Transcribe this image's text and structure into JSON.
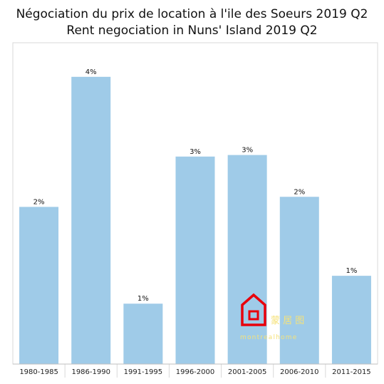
{
  "chart_data": {
    "type": "bar",
    "title": "Négociation du prix de location à l'ile des Soeurs 2019 Q2",
    "subtitle": "Rent negociation in Nuns' Island 2019 Q2",
    "categories": [
      "1980-1985",
      "1986-1990",
      "1991-1995",
      "1996-2000",
      "2001-2005",
      "2006-2010",
      "2011-2015"
    ],
    "values": [
      2.03,
      3.71,
      0.78,
      2.68,
      2.7,
      2.16,
      1.14
    ],
    "data_labels": [
      "2%",
      "4%",
      "1%",
      "3%",
      "3%",
      "2%",
      "1%"
    ],
    "ylim": [
      0,
      4.15
    ],
    "grid": false,
    "bar_color": "#9fcbe8"
  },
  "watermark": {
    "chinese": "蒙 居 图",
    "latin": "montrealhome",
    "color": "#f5e27a",
    "house_color": "#e8000b"
  }
}
